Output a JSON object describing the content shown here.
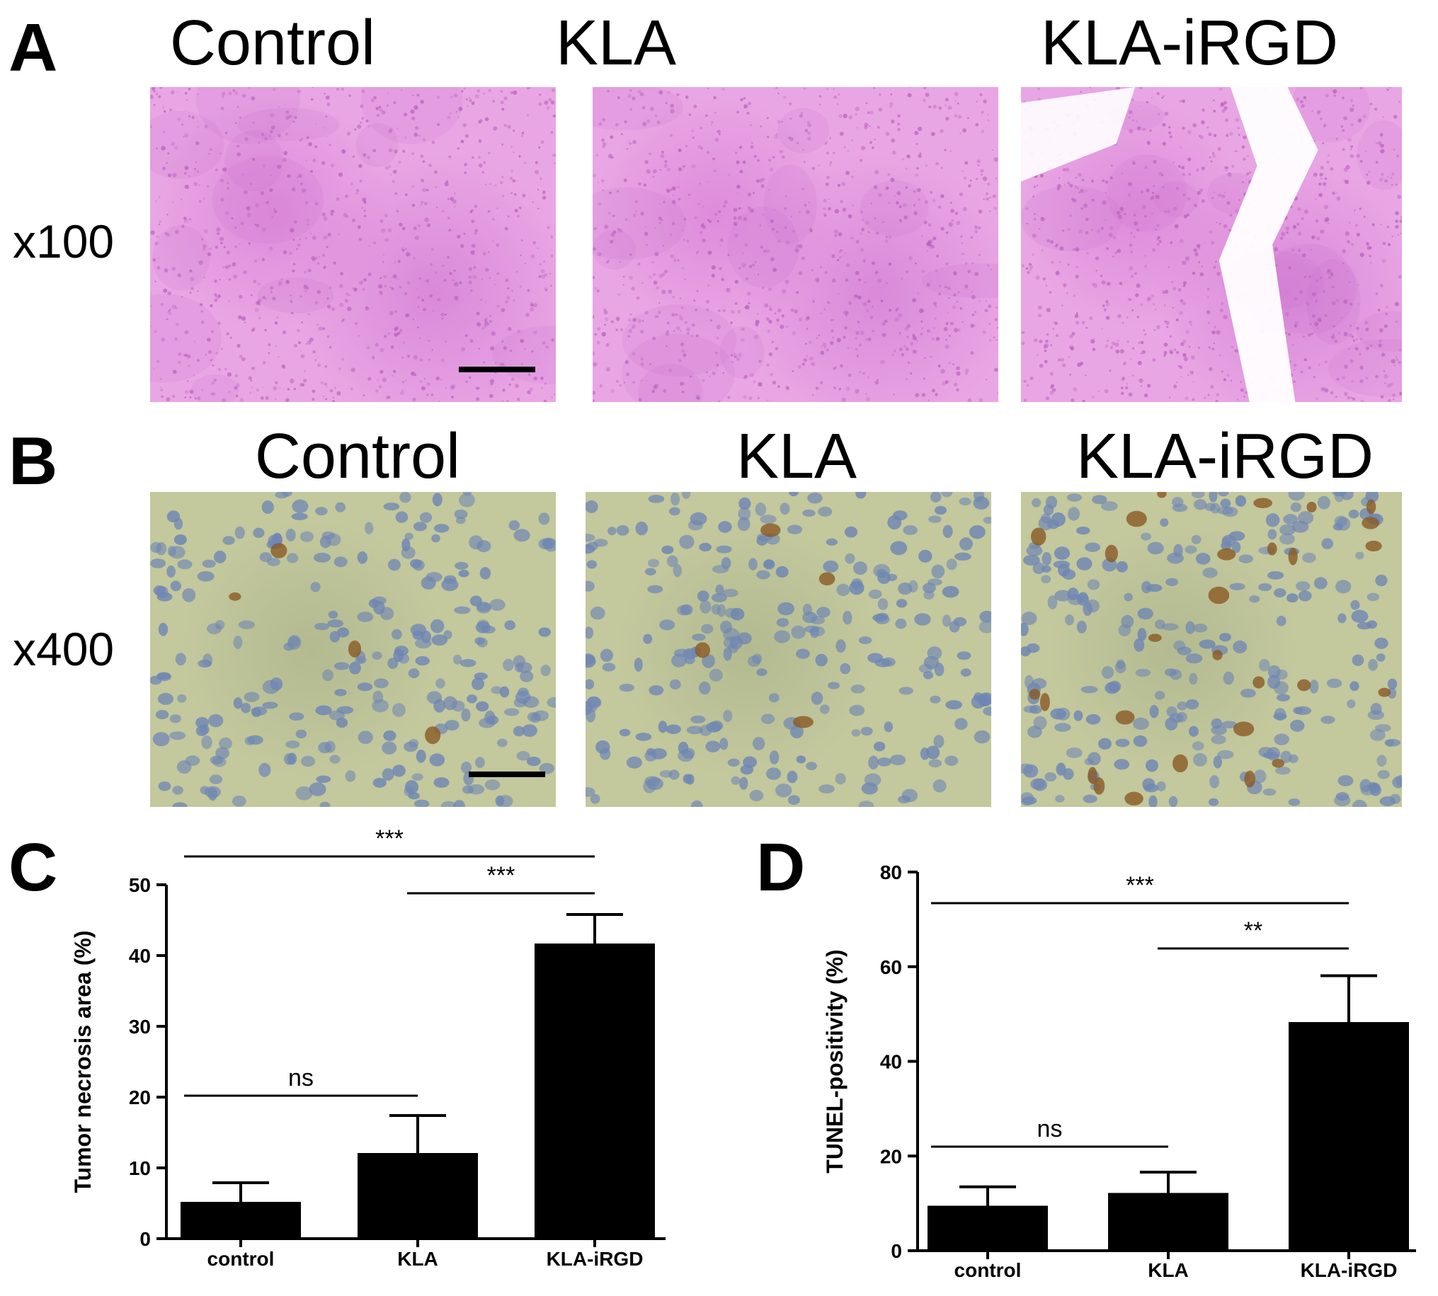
{
  "panels": {
    "a": {
      "letter": "A",
      "magnification": "x100",
      "titles": [
        "Control",
        "KLA",
        "KLA-iRGD"
      ],
      "stain": "he"
    },
    "b": {
      "letter": "B",
      "magnification": "x400",
      "titles": [
        "Control",
        "KLA",
        "KLA-iRGD"
      ],
      "stain": "tunel"
    },
    "c": {
      "letter": "C"
    },
    "d": {
      "letter": "D"
    }
  },
  "colors": {
    "he_bg": "#e9a6e4",
    "he_dot": "#b45ab8",
    "tunel_bg": "#c3c89d",
    "tunel_nucleus": "#6f86b3",
    "tunel_brown": "#8a5a24",
    "bar": "#000000"
  },
  "chart_data": [
    {
      "type": "bar",
      "panel": "C",
      "categories": [
        "control",
        "KLA",
        "KLA-iRGD"
      ],
      "values": [
        5.2,
        12.1,
        41.7
      ],
      "errors": [
        2.7,
        5.3,
        4.1
      ],
      "ylabel": "Tumor necrosis area (%)",
      "ylim": [
        0,
        50
      ],
      "yticks": [
        "0",
        "10",
        "20",
        "30",
        "40",
        "50"
      ],
      "significance": [
        {
          "from": 0,
          "to": 2,
          "label": "***"
        },
        {
          "from": 1,
          "to": 2,
          "label": "***"
        },
        {
          "from": 0,
          "to": 1,
          "label": "ns"
        }
      ]
    },
    {
      "type": "bar",
      "panel": "D",
      "categories": [
        "control",
        "KLA",
        "KLA-iRGD"
      ],
      "values": [
        9.5,
        12.2,
        48.3
      ],
      "errors": [
        4.0,
        4.4,
        9.8
      ],
      "ylabel": "TUNEL-positivity (%)",
      "ylim": [
        0,
        80
      ],
      "yticks": [
        "0",
        "20",
        "40",
        "60",
        "80"
      ],
      "significance": [
        {
          "from": 0,
          "to": 2,
          "label": "***"
        },
        {
          "from": 1,
          "to": 2,
          "label": "**"
        },
        {
          "from": 0,
          "to": 1,
          "label": "ns"
        }
      ]
    }
  ]
}
